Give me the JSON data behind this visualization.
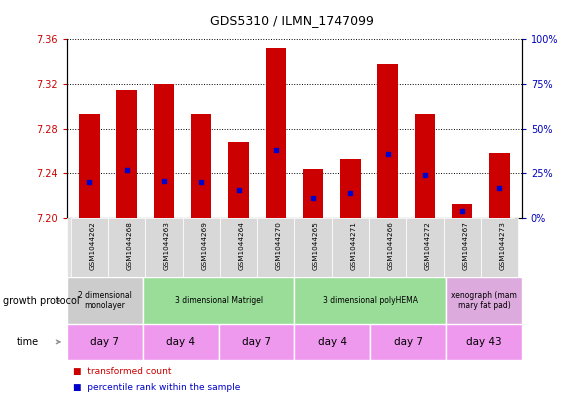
{
  "title": "GDS5310 / ILMN_1747099",
  "samples": [
    "GSM1044262",
    "GSM1044268",
    "GSM1044263",
    "GSM1044269",
    "GSM1044264",
    "GSM1044270",
    "GSM1044265",
    "GSM1044271",
    "GSM1044266",
    "GSM1044272",
    "GSM1044267",
    "GSM1044273"
  ],
  "transformed_counts": [
    7.293,
    7.315,
    7.32,
    7.293,
    7.268,
    7.352,
    7.244,
    7.253,
    7.338,
    7.293,
    7.213,
    7.258
  ],
  "percentile_ranks": [
    20,
    27,
    21,
    20,
    16,
    38,
    11,
    14,
    36,
    24,
    4,
    17
  ],
  "y_min": 7.2,
  "y_max": 7.36,
  "bar_color": "#cc0000",
  "dot_color": "#0000cc",
  "left_tick_color": "#cc0000",
  "right_tick_color": "#0000bb",
  "growth_protocol_groups": [
    {
      "label": "2 dimensional\nmonolayer",
      "start": 0,
      "end": 2,
      "color": "#cccccc"
    },
    {
      "label": "3 dimensional Matrigel",
      "start": 2,
      "end": 6,
      "color": "#99dd99"
    },
    {
      "label": "3 dimensional polyHEMA",
      "start": 6,
      "end": 10,
      "color": "#99dd99"
    },
    {
      "label": "xenograph (mam\nmary fat pad)",
      "start": 10,
      "end": 12,
      "color": "#ddaadd"
    }
  ],
  "time_groups": [
    {
      "label": "day 7",
      "start": 0,
      "end": 2
    },
    {
      "label": "day 4",
      "start": 2,
      "end": 4
    },
    {
      "label": "day 7",
      "start": 4,
      "end": 6
    },
    {
      "label": "day 4",
      "start": 6,
      "end": 8
    },
    {
      "label": "day 7",
      "start": 8,
      "end": 10
    },
    {
      "label": "day 43",
      "start": 10,
      "end": 12
    }
  ],
  "time_color": "#ee99ee",
  "yticks_left": [
    7.2,
    7.24,
    7.28,
    7.32,
    7.36
  ],
  "yticks_right": [
    0,
    25,
    50,
    75,
    100
  ],
  "legend_items": [
    {
      "label": "transformed count",
      "color": "#cc0000",
      "marker": "s"
    },
    {
      "label": "percentile rank within the sample",
      "color": "#0000cc",
      "marker": "s"
    }
  ]
}
